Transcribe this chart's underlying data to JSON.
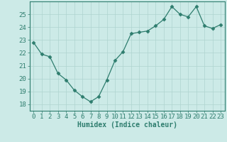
{
  "x": [
    0,
    1,
    2,
    3,
    4,
    5,
    6,
    7,
    8,
    9,
    10,
    11,
    12,
    13,
    14,
    15,
    16,
    17,
    18,
    19,
    20,
    21,
    22,
    23
  ],
  "y": [
    22.8,
    21.9,
    21.7,
    20.4,
    19.9,
    19.1,
    18.6,
    18.2,
    18.6,
    19.9,
    21.4,
    22.1,
    23.5,
    23.6,
    23.7,
    24.1,
    24.6,
    25.6,
    25.0,
    24.8,
    25.6,
    24.1,
    23.9,
    24.2
  ],
  "xlabel": "Humidex (Indice chaleur)",
  "ylim": [
    17.5,
    26.0
  ],
  "xlim": [
    -0.5,
    23.5
  ],
  "yticks": [
    18,
    19,
    20,
    21,
    22,
    23,
    24,
    25
  ],
  "xticks": [
    0,
    1,
    2,
    3,
    4,
    5,
    6,
    7,
    8,
    9,
    10,
    11,
    12,
    13,
    14,
    15,
    16,
    17,
    18,
    19,
    20,
    21,
    22,
    23
  ],
  "line_color": "#2e7d6e",
  "marker": "D",
  "marker_size": 2.5,
  "bg_color": "#cceae7",
  "grid_color": "#aed4d0",
  "axis_color": "#2e7d6e",
  "tick_label_color": "#2e7d6e",
  "xlabel_color": "#2e7d6e",
  "xlabel_fontsize": 7,
  "tick_fontsize": 6.5
}
